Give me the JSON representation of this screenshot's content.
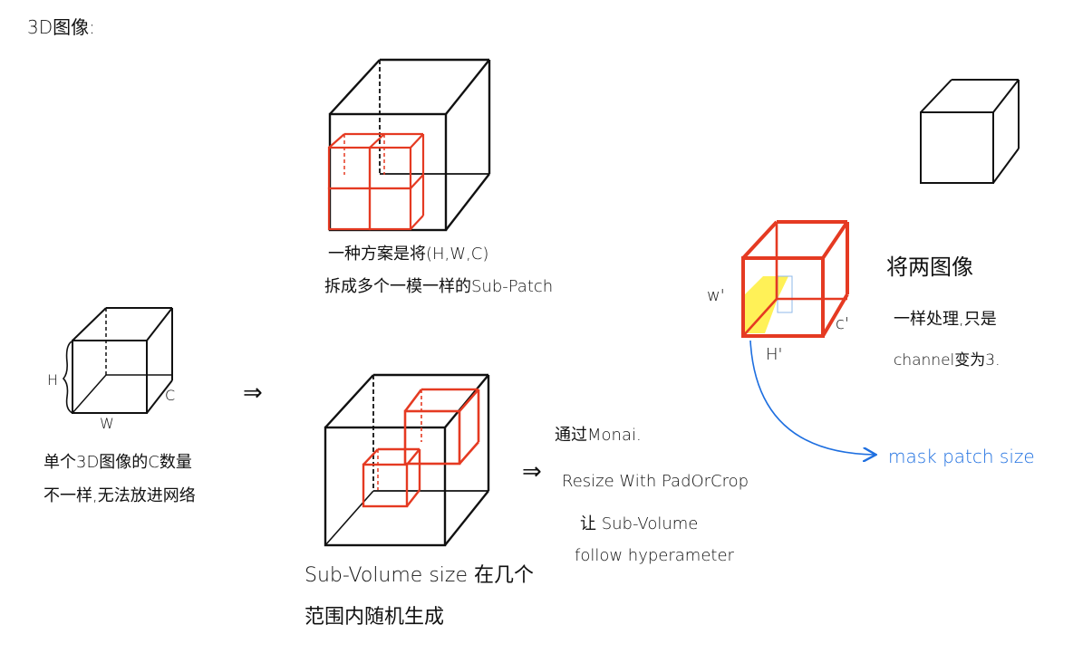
{
  "title": "3D图像:",
  "left_cube": {
    "h_label": "H",
    "w_label": "W",
    "c_label": "C"
  },
  "left_note": {
    "line1": "单个3D图像的C数量",
    "line2": "不一样,无法放进网络"
  },
  "arrow_main": "⇒",
  "arrow_resize": "⇒",
  "top_center_note": {
    "line1": "一种方案是将(H,W,C)",
    "line2": "拆成多个一模一样的Sub-Patch"
  },
  "bottom_center_note": {
    "line1": "Sub-Volume size 在几个",
    "line2": "范围内随机生成"
  },
  "monai_note": {
    "line1": "通过Monai.",
    "line2": "Resize With PadOrCrop",
    "line3": "让 Sub-Volume",
    "line4": "follow hyperameter"
  },
  "mask_cube": {
    "w_label": "w'",
    "c_label": "c'",
    "h_label": "H'"
  },
  "right_note": {
    "line1": "将两图像",
    "line2": "一样处理,只是",
    "line3": "channel变为3."
  },
  "mask_patch_label": "mask patch size",
  "colors": {
    "ink": "#111111",
    "red": "#e53a22",
    "yellow": "#ffef3a",
    "blue": "#1e6fe0"
  }
}
